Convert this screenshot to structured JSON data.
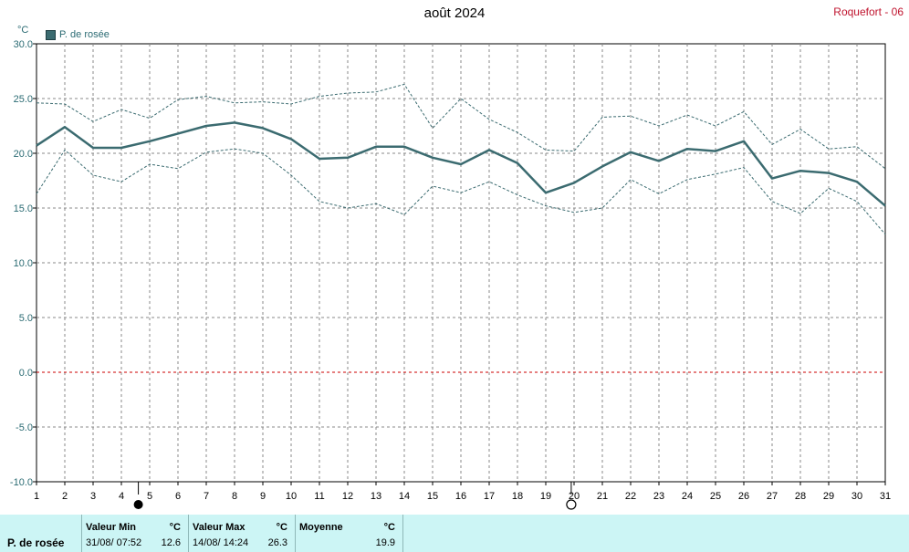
{
  "title": "août 2024",
  "station": "Roquefort - 06",
  "unit": "°C",
  "legend": {
    "label": "P. de rosée",
    "color": "#3b6b70"
  },
  "chart_data": {
    "type": "line",
    "title": "août 2024",
    "ylabel": "°C",
    "ylim": [
      -10,
      30
    ],
    "y_ticks": [
      "30.0",
      "25.0",
      "20.0",
      "15.0",
      "10.0",
      "5.0",
      "0.0",
      "-5.0",
      "-10.0"
    ],
    "x": [
      1,
      2,
      3,
      4,
      5,
      6,
      7,
      8,
      9,
      10,
      11,
      12,
      13,
      14,
      15,
      16,
      17,
      18,
      19,
      20,
      21,
      22,
      23,
      24,
      25,
      26,
      27,
      28,
      29,
      30,
      31
    ],
    "grid": true,
    "reference_line": {
      "y": 0,
      "color": "#cc0000"
    },
    "moon_phases": [
      {
        "x": 4.6,
        "phase": "full"
      },
      {
        "x": 19.9,
        "phase": "new"
      }
    ],
    "series": [
      {
        "name": "P. de rosée",
        "role": "mean",
        "color": "#3b6b70",
        "values": [
          20.7,
          22.4,
          20.5,
          20.5,
          21.1,
          21.8,
          22.5,
          22.8,
          22.3,
          21.3,
          19.5,
          19.6,
          20.6,
          20.6,
          19.6,
          19.0,
          20.3,
          19.1,
          16.4,
          17.3,
          18.8,
          20.1,
          19.3,
          20.4,
          20.2,
          21.1,
          17.7,
          18.4,
          18.2,
          17.4,
          15.2
        ]
      },
      {
        "role": "max",
        "color": "#3b6b70",
        "values": [
          24.6,
          24.5,
          22.9,
          24.0,
          23.2,
          24.9,
          25.2,
          24.6,
          24.7,
          24.5,
          25.2,
          25.5,
          25.6,
          26.3,
          22.3,
          25.0,
          23.1,
          21.9,
          20.3,
          20.2,
          23.3,
          23.4,
          22.5,
          23.5,
          22.5,
          23.8,
          20.8,
          22.2,
          20.4,
          20.6,
          18.6
        ]
      },
      {
        "role": "min",
        "color": "#3b6b70",
        "values": [
          16.3,
          20.3,
          18.0,
          17.4,
          19.0,
          18.6,
          20.1,
          20.4,
          20.0,
          18.0,
          15.6,
          15.0,
          15.4,
          14.4,
          17.0,
          16.4,
          17.4,
          16.2,
          15.2,
          14.6,
          15.0,
          17.6,
          16.3,
          17.6,
          18.1,
          18.7,
          15.6,
          14.5,
          16.8,
          15.6,
          12.6
        ]
      }
    ]
  },
  "stats": {
    "row_label": "P. de rosée",
    "min": {
      "label": "Valeur Min",
      "unit": "°C",
      "when": "31/08/  07:52",
      "value": "12.6"
    },
    "max": {
      "label": "Valeur Max",
      "unit": "°C",
      "when": "14/08/  14:24",
      "value": "26.3"
    },
    "mean": {
      "label": "Moyenne",
      "unit": "°C",
      "value": "19.9"
    }
  }
}
